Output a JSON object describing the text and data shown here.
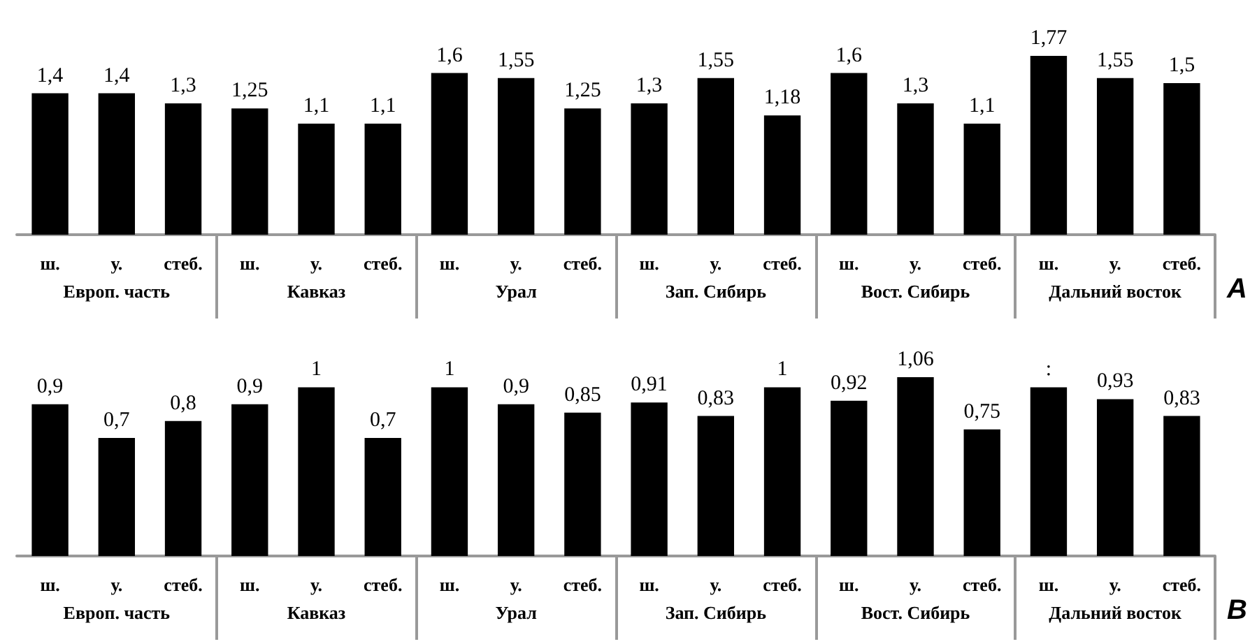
{
  "chart_data": [
    {
      "type": "bar",
      "title": "A",
      "categories": [
        "ш.",
        "у.",
        "стеб.",
        "ш.",
        "у.",
        "стеб.",
        "ш.",
        "у.",
        "стеб.",
        "ш.",
        "у.",
        "стеб.",
        "ш.",
        "у.",
        "стеб.",
        "ш.",
        "у.",
        "стеб."
      ],
      "values": [
        1.4,
        1.4,
        1.3,
        1.25,
        1.1,
        1.1,
        1.6,
        1.55,
        1.25,
        1.3,
        1.55,
        1.18,
        1.6,
        1.3,
        1.1,
        1.77,
        1.55,
        1.5
      ],
      "value_labels": [
        "1,4",
        "1,4",
        "1,3",
        "1,25",
        "1,1",
        "1,1",
        "1,6",
        "1,55",
        "1,25",
        "1,3",
        "1,55",
        "1,18",
        "1,6",
        "1,3",
        "1,1",
        "1,77",
        "1,55",
        "1,5"
      ],
      "color": "#000000",
      "annotations": [
        "Европ. часть",
        "Кавказ",
        "Урал",
        "Зап. Сибирь",
        "Вост. Сибирь",
        "Дальний восток"
      ]
    },
    {
      "type": "bar",
      "title": "B",
      "categories": [
        "ш.",
        "у.",
        "стеб.",
        "ш.",
        "у.",
        "стеб.",
        "ш.",
        "у.",
        "стеб.",
        "ш.",
        "у.",
        "стеб.",
        "ш.",
        "у.",
        "стеб.",
        "ш.",
        "у.",
        "стеб."
      ],
      "values": [
        0.9,
        0.7,
        0.8,
        0.9,
        1,
        0.7,
        1,
        0.9,
        0.85,
        0.91,
        0.83,
        1,
        0.92,
        1.06,
        0.75,
        1,
        0.93,
        0.83
      ],
      "value_labels": [
        "0,9",
        "0,7",
        "0,8",
        "0,9",
        "1",
        "0,7",
        "1",
        "0,9",
        "0,85",
        "0,91",
        "0,83",
        "1",
        "0,92",
        "1,06",
        "0,75",
        ":",
        "0,93",
        "0,83"
      ],
      "color": "#000000",
      "annotations": [
        "Европ. часть",
        "Кавказ",
        "Урал",
        "Зап. Сибирь",
        "Вост. Сибирь",
        "Дальний восток"
      ]
    }
  ]
}
